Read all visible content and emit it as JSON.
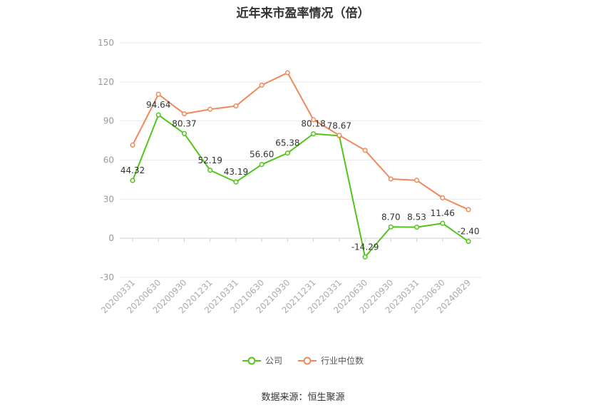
{
  "chart_data": {
    "type": "line",
    "title": "近年来市盈率情况（倍）",
    "categories": [
      "20200331",
      "20200630",
      "20200930",
      "20201231",
      "20210331",
      "20210630",
      "20210930",
      "20211231",
      "20220331",
      "20220630",
      "20220930",
      "20230331",
      "20230630",
      "20240829"
    ],
    "series": [
      {
        "name": "公司",
        "color": "#52c41a",
        "values": [
          44.32,
          94.64,
          80.37,
          52.19,
          43.19,
          56.6,
          65.38,
          80.18,
          78.67,
          -14.29,
          8.7,
          8.53,
          11.46,
          -2.4
        ],
        "labels": [
          "44.32",
          "94.64",
          "80.37",
          "52.19",
          "43.19",
          "56.60",
          "65.38",
          "80.18",
          "78.67",
          "-14.29",
          "8.70",
          "8.53",
          "11.46",
          "-2.40"
        ]
      },
      {
        "name": "行业中位数",
        "color": "#f0885a",
        "values": [
          71.5,
          110.5,
          95.5,
          99,
          101.5,
          117.5,
          127,
          91,
          79,
          67.5,
          45.5,
          44.5,
          31,
          22
        ]
      }
    ],
    "yticks": [
      "150",
      "120",
      "90",
      "60",
      "30",
      "0",
      "-30"
    ],
    "ylim": [
      -30,
      150
    ],
    "grid": true,
    "legend_position": "bottom"
  },
  "source_text": "数据来源：恒生聚源"
}
